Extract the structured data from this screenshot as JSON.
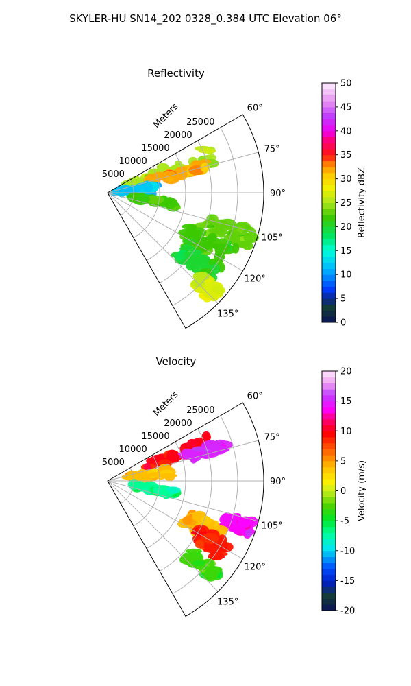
{
  "figure": {
    "suptitle": "SKYLER-HU  SN14_202  0328_0.384 UTC Elevation 06°"
  },
  "chart_data": [
    {
      "type": "heatmap",
      "subtype": "polar-sector-ppi",
      "title": "Reflectivity",
      "radial_label": "Meters",
      "radial_ticks": [
        5000,
        10000,
        15000,
        20000,
        25000
      ],
      "radial_range": [
        0,
        30000
      ],
      "theta_range_deg": [
        60,
        150
      ],
      "theta_ticks_deg": [
        60,
        75,
        90,
        105,
        120,
        135
      ],
      "theta_tick_labels": [
        "60°",
        "75°",
        "90°",
        "105°",
        "120°",
        "135°"
      ],
      "grid": true,
      "colorbar": {
        "label": "Reflectivity dBZ",
        "min": 0,
        "max": 50,
        "ticks": [
          0,
          5,
          10,
          15,
          20,
          25,
          30,
          35,
          40,
          45,
          50
        ]
      },
      "echo_regions": [
        {
          "theta": 70,
          "range": [
            4000,
            22000
          ],
          "spread_deg": 5,
          "value": 25
        },
        {
          "theta": 75,
          "range": [
            8000,
            20000
          ],
          "spread_deg": 3,
          "value": 32
        },
        {
          "theta": 86,
          "range": [
            1000,
            9000
          ],
          "spread_deg": 7,
          "value": 12
        },
        {
          "theta": 100,
          "range": [
            5000,
            13000
          ],
          "spread_deg": 3,
          "value": 22
        },
        {
          "theta": 108,
          "range": [
            19000,
            29000
          ],
          "spread_deg": 4,
          "value": 23
        },
        {
          "theta": 118,
          "range": [
            17000,
            27000
          ],
          "spread_deg": 6,
          "value": 22
        },
        {
          "theta": 128,
          "range": [
            18000,
            26000
          ],
          "spread_deg": 4,
          "value": 20
        },
        {
          "theta": 134,
          "range": [
            24000,
            29000
          ],
          "spread_deg": 3,
          "value": 27
        }
      ]
    },
    {
      "type": "heatmap",
      "subtype": "polar-sector-ppi",
      "title": "Velocity",
      "radial_label": "Meters",
      "radial_ticks": [
        5000,
        10000,
        15000,
        20000,
        25000
      ],
      "radial_range": [
        0,
        30000
      ],
      "theta_range_deg": [
        60,
        150
      ],
      "theta_ticks_deg": [
        60,
        75,
        90,
        105,
        120,
        135
      ],
      "theta_tick_labels": [
        "60°",
        "75°",
        "90°",
        "105°",
        "120°",
        "135°"
      ],
      "grid": true,
      "colorbar": {
        "label": "Velocity (m/s)",
        "min": -20,
        "max": 20,
        "ticks": [
          -20,
          -15,
          -10,
          -5,
          0,
          5,
          10,
          15,
          20
        ]
      },
      "echo_regions": [
        {
          "theta": 69,
          "range": [
            8000,
            21000
          ],
          "spread_deg": 4,
          "value": 10
        },
        {
          "theta": 73,
          "range": [
            16000,
            24000
          ],
          "spread_deg": 3,
          "value": 15
        },
        {
          "theta": 82,
          "range": [
            4000,
            12000
          ],
          "spread_deg": 5,
          "value": 4
        },
        {
          "theta": 100,
          "range": [
            5000,
            13000
          ],
          "spread_deg": 3,
          "value": -7
        },
        {
          "theta": 108,
          "range": [
            24000,
            29000
          ],
          "spread_deg": 3,
          "value": 14
        },
        {
          "theta": 116,
          "range": [
            17000,
            24000
          ],
          "spread_deg": 5,
          "value": 4
        },
        {
          "theta": 121,
          "range": [
            20000,
            26000
          ],
          "spread_deg": 4,
          "value": 9
        },
        {
          "theta": 132,
          "range": [
            21000,
            28000
          ],
          "spread_deg": 3,
          "value": -3
        }
      ]
    }
  ]
}
